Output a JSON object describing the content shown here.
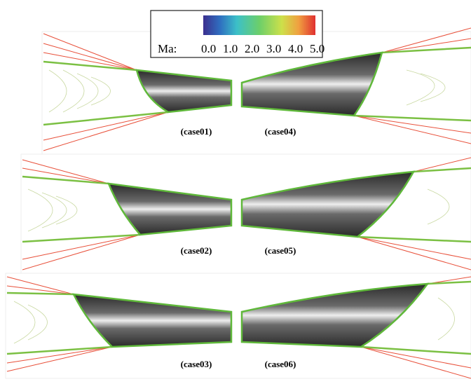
{
  "colorbar": {
    "label": "Ma:",
    "ticks": [
      "0.0",
      "1.0",
      "2.0",
      "3.0",
      "4.0",
      "5.0"
    ]
  },
  "panels": [
    "(case01)",
    "(case04)",
    "(case02)",
    "(case05)",
    "(case03)",
    "(case06)"
  ]
}
